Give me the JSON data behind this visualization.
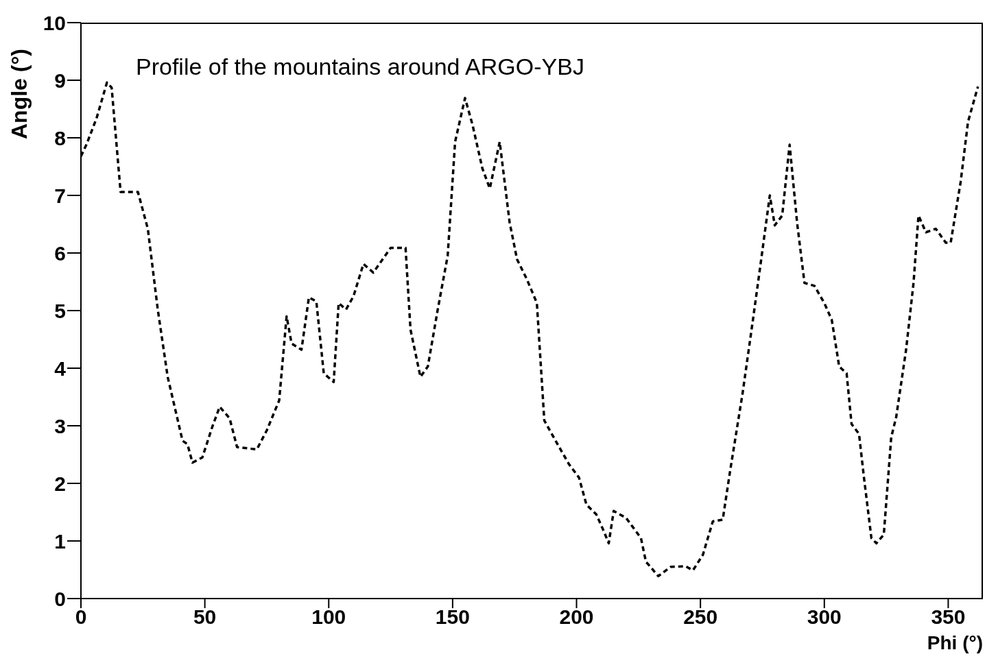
{
  "chart_data": {
    "type": "line",
    "title": "Profile of the mountains around ARGO-YBJ",
    "xlabel": "Phi (°)",
    "ylabel": "Angle (°)",
    "xlim": [
      0,
      364
    ],
    "xticks": [
      0,
      50,
      100,
      150,
      200,
      250,
      300,
      350
    ],
    "ylim": [
      0,
      10
    ],
    "yticks": [
      0,
      1,
      2,
      3,
      4,
      5,
      6,
      7,
      8,
      9,
      10
    ],
    "grid": false,
    "legend": false,
    "marker": "none",
    "line_style": "dashed",
    "series": [
      {
        "color": "#000000",
        "x": [
          0,
          2.2,
          6.3,
          10.5,
          12.4,
          16,
          23,
          27,
          31,
          35,
          41,
          43,
          45,
          49,
          53,
          56,
          60,
          63,
          71,
          75,
          80,
          83,
          85,
          89,
          92,
          95,
          98,
          102,
          104,
          107,
          110,
          114,
          118,
          125,
          131,
          133,
          137,
          140,
          144,
          148,
          151,
          155,
          158,
          162,
          165,
          169,
          173,
          176,
          180,
          184,
          187,
          193,
          197,
          201,
          204,
          208,
          211,
          213,
          215,
          220,
          226,
          228,
          233,
          238,
          244,
          247,
          251,
          255,
          259,
          262,
          267,
          271,
          274,
          278,
          280,
          283,
          286,
          289,
          292,
          296,
          300,
          303,
          306,
          309,
          311,
          314,
          316,
          319,
          321,
          324,
          327,
          329,
          333,
          336,
          338,
          341,
          345,
          349,
          351,
          355,
          358,
          362
        ],
        "values": [
          7.68,
          7.88,
          8.34,
          8.96,
          8.87,
          7.06,
          7.06,
          6.42,
          5.02,
          3.85,
          2.74,
          2.68,
          2.36,
          2.45,
          2.98,
          3.33,
          3.13,
          2.63,
          2.59,
          2.92,
          3.44,
          4.9,
          4.43,
          4.32,
          5.23,
          5.16,
          3.91,
          3.76,
          5.13,
          5.02,
          5.25,
          5.81,
          5.66,
          6.09,
          6.09,
          4.67,
          3.85,
          4.03,
          5.02,
          5.95,
          7.93,
          8.69,
          8.23,
          7.47,
          7.12,
          7.93,
          6.53,
          5.89,
          5.54,
          5.13,
          3.09,
          2.63,
          2.33,
          2.1,
          1.63,
          1.46,
          1.17,
          0.96,
          1.52,
          1.4,
          1.05,
          0.64,
          0.39,
          0.55,
          0.56,
          0.49,
          0.76,
          1.34,
          1.37,
          2.22,
          3.56,
          4.78,
          5.72,
          7.0,
          6.48,
          6.65,
          7.88,
          6.53,
          5.48,
          5.43,
          5.13,
          4.84,
          4.03,
          3.91,
          3.03,
          2.86,
          2.1,
          1.05,
          0.96,
          1.11,
          2.8,
          3.15,
          4.32,
          5.48,
          6.65,
          6.36,
          6.42,
          6.18,
          6.18,
          7.23,
          8.28,
          8.89
        ]
      }
    ]
  }
}
